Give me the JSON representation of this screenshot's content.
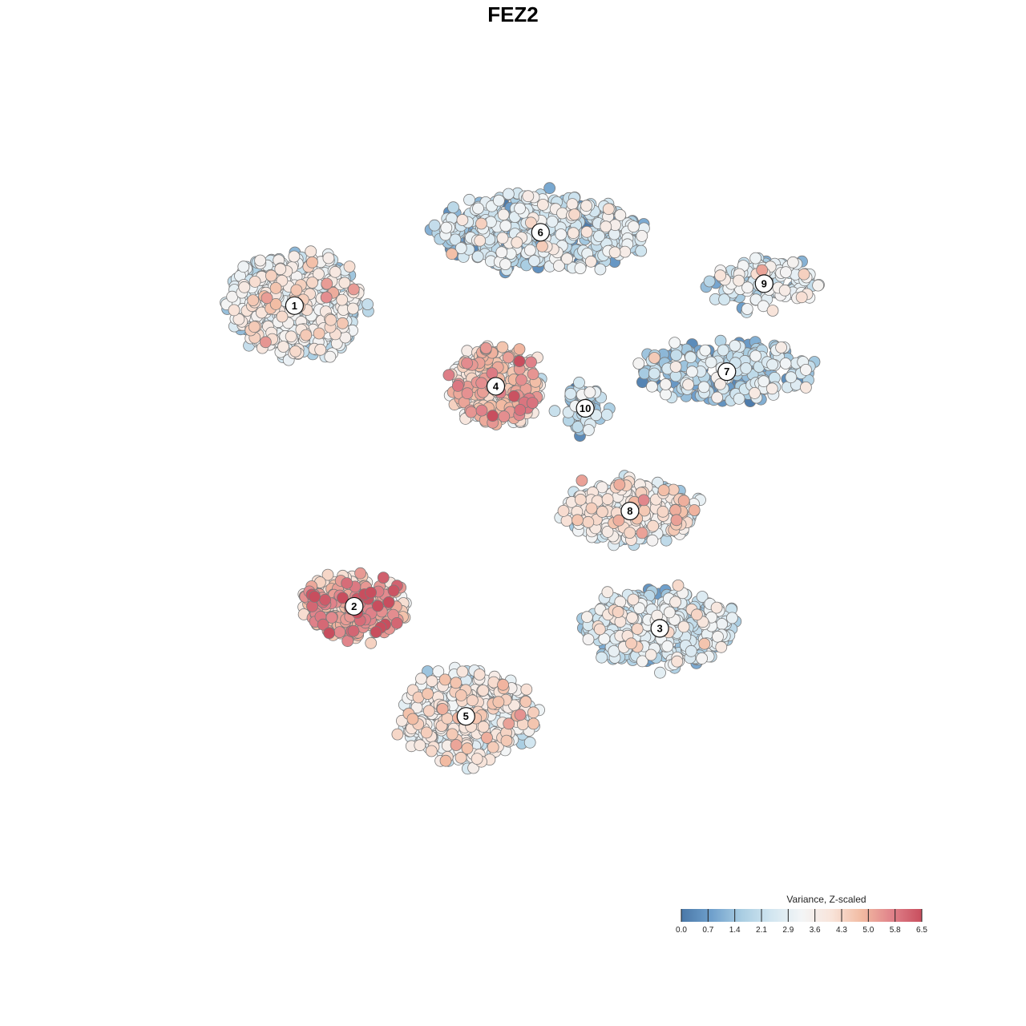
{
  "chart_data": {
    "type": "scatter",
    "title": "FEZ2",
    "xlabel": "",
    "ylabel": "",
    "grid": false,
    "axes_visible": false,
    "xlim": [
      0,
      100
    ],
    "ylim": [
      0,
      100
    ],
    "color_scale": {
      "title": "Variance, Z-scaled",
      "min": 0.0,
      "max": 6.5,
      "ticks": [
        "0.0",
        "0.7",
        "1.4",
        "2.1",
        "2.9",
        "3.6",
        "4.3",
        "5.0",
        "5.8",
        "6.5"
      ],
      "colors": [
        "#4a78a8",
        "#6fa0cc",
        "#a9cde2",
        "#d2e6f0",
        "#f3f5f6",
        "#f8e4da",
        "#f2bba2",
        "#e0828a",
        "#c84e5e"
      ],
      "legend_position": "bottom-right"
    },
    "clusters": [
      {
        "label": "1",
        "x": 18,
        "y": 78,
        "value_mean": 2.9,
        "spread": [
          9,
          7
        ],
        "n": 520
      },
      {
        "label": "2",
        "x": 26,
        "y": 37,
        "value_mean": 4.8,
        "spread": [
          7,
          4
        ],
        "n": 260
      },
      {
        "label": "3",
        "x": 67,
        "y": 34,
        "value_mean": 2.3,
        "spread": [
          10,
          5
        ],
        "n": 430
      },
      {
        "label": "4",
        "x": 45,
        "y": 67,
        "value_mean": 4.2,
        "spread": [
          6,
          5
        ],
        "n": 300
      },
      {
        "label": "5",
        "x": 41,
        "y": 22,
        "value_mean": 3.1,
        "spread": [
          9,
          6
        ],
        "n": 450
      },
      {
        "label": "6",
        "x": 51,
        "y": 88,
        "value_mean": 2.1,
        "spread": [
          14,
          5
        ],
        "n": 520
      },
      {
        "label": "7",
        "x": 76,
        "y": 69,
        "value_mean": 1.8,
        "spread": [
          12,
          4
        ],
        "n": 230
      },
      {
        "label": "8",
        "x": 63,
        "y": 50,
        "value_mean": 3.0,
        "spread": [
          9,
          4
        ],
        "n": 380
      },
      {
        "label": "9",
        "x": 81,
        "y": 81,
        "value_mean": 2.3,
        "spread": [
          7,
          3
        ],
        "n": 150
      },
      {
        "label": "10",
        "x": 57,
        "y": 64,
        "value_mean": 1.9,
        "spread": [
          2.5,
          3
        ],
        "n": 60
      }
    ]
  }
}
